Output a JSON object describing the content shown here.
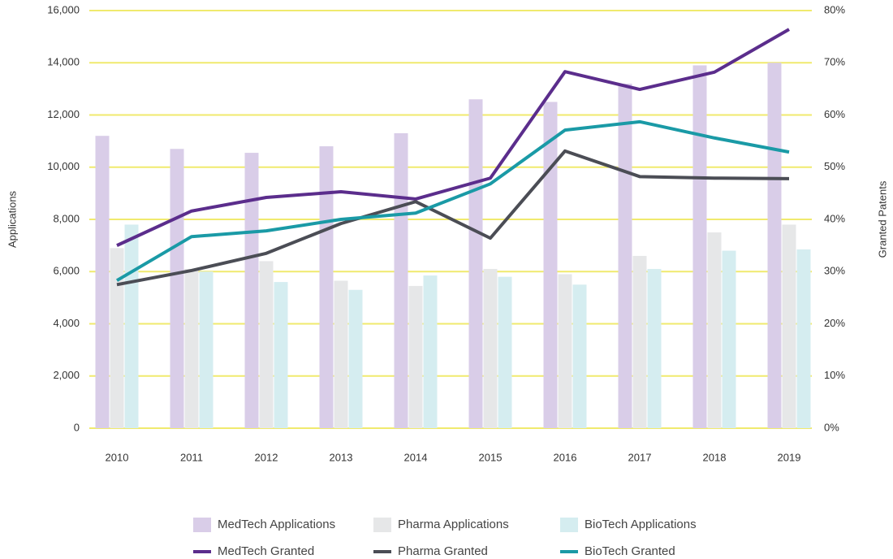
{
  "chart_data": {
    "type": "bar",
    "y_label": "Applications",
    "y2_label": "Granted Patents",
    "categories": [
      "2010",
      "2011",
      "2012",
      "2013",
      "2014",
      "2015",
      "2016",
      "2017",
      "2018",
      "2019"
    ],
    "series": [
      {
        "name": "MedTech Applications",
        "type": "bar",
        "color": "#d9cde8",
        "values": [
          11200,
          10700,
          10550,
          10800,
          11300,
          12600,
          12500,
          13200,
          13900,
          14000
        ]
      },
      {
        "name": "Pharma Applications",
        "type": "bar",
        "color": "#e6e7e8",
        "values": [
          6900,
          6100,
          6400,
          5650,
          5450,
          6100,
          5900,
          6600,
          7500,
          7800
        ]
      },
      {
        "name": "BioTech Applications",
        "type": "bar",
        "color": "#d5edf0",
        "values": [
          7800,
          6000,
          5600,
          5300,
          5850,
          5800,
          5500,
          6100,
          6800,
          6850
        ]
      },
      {
        "name": "MedTech Granted",
        "type": "line",
        "axis": "y2",
        "color": "#5b2d8c",
        "values": [
          35.0,
          41.6,
          44.2,
          45.3,
          43.9,
          47.9,
          68.3,
          64.9,
          68.2,
          76.4
        ]
      },
      {
        "name": "Pharma Granted",
        "type": "line",
        "axis": "y2",
        "color": "#4b4d55",
        "values": [
          27.5,
          30.2,
          33.5,
          39.2,
          43.4,
          36.4,
          53.1,
          48.2,
          47.9,
          47.8
        ]
      },
      {
        "name": "BioTech Granted",
        "type": "line",
        "axis": "y2",
        "color": "#1a9aa6",
        "values": [
          28.3,
          36.7,
          37.8,
          40.0,
          41.2,
          46.8,
          57.1,
          58.7,
          55.6,
          52.9
        ]
      }
    ],
    "ylim": [
      0,
      16000
    ],
    "yticks": [
      0,
      {
        "value": 2000,
        "label": "2,000"
      },
      {
        "value": 4000,
        "label": "4,000"
      },
      {
        "value": 6000,
        "label": "6,000"
      },
      {
        "value": 8000,
        "label": "8,000"
      },
      {
        "value": 10000,
        "label": "10,000"
      },
      {
        "value": 12000,
        "label": "12,000"
      },
      {
        "value": 14000,
        "label": "14,000"
      },
      {
        "value": 16000,
        "label": "16,000"
      }
    ],
    "y2lim": [
      0,
      80
    ],
    "y2ticks": [
      {
        "value": 0,
        "label": "0%"
      },
      {
        "value": 10,
        "label": "10%"
      },
      {
        "value": 20,
        "label": "20%"
      },
      {
        "value": 30,
        "label": "30%"
      },
      {
        "value": 40,
        "label": "40%"
      },
      {
        "value": 50,
        "label": "50%"
      },
      {
        "value": 60,
        "label": "60%"
      },
      {
        "value": 70,
        "label": "70%"
      },
      {
        "value": 80,
        "label": "80%"
      }
    ],
    "grid": true,
    "grid_color": "#f0ea6e",
    "legend": "bottom"
  }
}
